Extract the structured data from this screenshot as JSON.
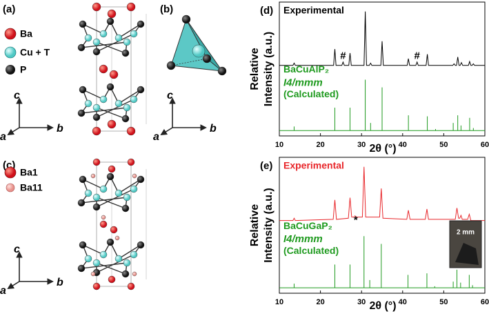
{
  "panels": {
    "a": "(a)",
    "b": "(b)",
    "c": "(c)"
  },
  "axes": {
    "a": "a",
    "b": "b",
    "c": "c"
  },
  "legend_a": [
    "Ba",
    "Cu + T",
    "P"
  ],
  "legend_c": [
    "Ba1",
    "Ba11"
  ],
  "chart_data": [
    {
      "type": "line",
      "panel": "(d)",
      "xlabel": "2θ (°)",
      "ylabel": [
        "Relative",
        "Intensity (a.u.)"
      ],
      "xlim": [
        10,
        60
      ],
      "xticks": [
        10,
        20,
        30,
        40,
        50,
        60
      ],
      "ylim": [
        0,
        100
      ],
      "series": [
        {
          "name": "Experimental",
          "color": "#000000",
          "x": [
            10,
            13.3,
            13.6,
            13.9,
            23.2,
            23.5,
            23.8,
            25.2,
            25.5,
            25.8,
            26.9,
            27.2,
            27.5,
            30.6,
            30.9,
            31.2,
            31.9,
            32.2,
            32.5,
            34.7,
            35,
            35.3,
            41.1,
            41.4,
            41.7,
            43.2,
            43.5,
            43.8,
            45.7,
            46,
            46.3,
            52.2,
            52.5,
            52.8,
            53.1,
            53.4,
            53.7,
            54,
            54.3,
            54.6,
            56,
            56.3,
            56.6,
            56.9,
            57.2,
            57.5,
            60
          ],
          "values": [
            4,
            4,
            8,
            4,
            4,
            33,
            4,
            4,
            10,
            4,
            4,
            26,
            4,
            4,
            100,
            4,
            4,
            8,
            4,
            4,
            47,
            4,
            4,
            16,
            4,
            4,
            10,
            4,
            4,
            24,
            4,
            4,
            7,
            4,
            4,
            19,
            4,
            4,
            9,
            4,
            4,
            11,
            4,
            4,
            7,
            4,
            4
          ]
        },
        {
          "name": "BaCuAlP₂",
          "space_group": "I4/mmm",
          "note": "(Calculated)",
          "color": "#1e9a1e",
          "style": "stem",
          "x": [
            13.6,
            23.5,
            27.2,
            30.9,
            32.2,
            35,
            41.4,
            46,
            48,
            52.3,
            53.4,
            54.2,
            56.3,
            57.2
          ],
          "values": [
            8,
            45,
            45,
            100,
            15,
            85,
            30,
            28,
            3,
            15,
            30,
            10,
            25,
            5
          ]
        }
      ],
      "annotations": [
        {
          "text": "#",
          "x": 25.5,
          "y": 20
        },
        {
          "text": "#",
          "x": 43.5,
          "y": 20
        }
      ]
    },
    {
      "type": "line",
      "panel": "(e)",
      "xlabel": "2θ (°)",
      "ylabel": [
        "Relative",
        "Intensity (a.u.)"
      ],
      "xlim": [
        10,
        60
      ],
      "xticks": [
        10,
        20,
        30,
        40,
        50,
        60
      ],
      "ylim": [
        0,
        100
      ],
      "series": [
        {
          "name": "Experimental",
          "color": "#e8262a",
          "x": [
            10,
            13.3,
            13.6,
            13.9,
            23.1,
            23.5,
            23.9,
            26.8,
            27.2,
            27.6,
            28.1,
            28.4,
            28.7,
            30.2,
            30.6,
            31,
            34.4,
            34.8,
            35.2,
            41,
            41.4,
            41.8,
            45.5,
            45.9,
            46.3,
            52.8,
            53.2,
            53.6,
            53.9,
            54.2,
            54.5,
            55.8,
            56.2,
            56.6,
            60
          ],
          "values": [
            6,
            6,
            10,
            6,
            8,
            42,
            8,
            10,
            46,
            12,
            12,
            14,
            12,
            12,
            100,
            12,
            12,
            62,
            10,
            8,
            24,
            8,
            8,
            26,
            8,
            8,
            28,
            10,
            10,
            15,
            8,
            8,
            17,
            6,
            6
          ]
        },
        {
          "name": "BaCuGaP₂",
          "space_group": "I4/mmm",
          "note": "(Calculated)",
          "color": "#1e9a1e",
          "style": "stem",
          "x": [
            13.6,
            23.5,
            27.2,
            30.6,
            32,
            34.8,
            41.3,
            45.9,
            47.8,
            52.3,
            53.2,
            54.1,
            56.2,
            57
          ],
          "values": [
            8,
            45,
            45,
            100,
            15,
            85,
            25,
            28,
            3,
            12,
            35,
            10,
            25,
            5
          ]
        }
      ],
      "annotations": [
        {
          "text": "*",
          "x": 28.6,
          "y": 6
        }
      ],
      "inset_label": "2 mm"
    }
  ]
}
